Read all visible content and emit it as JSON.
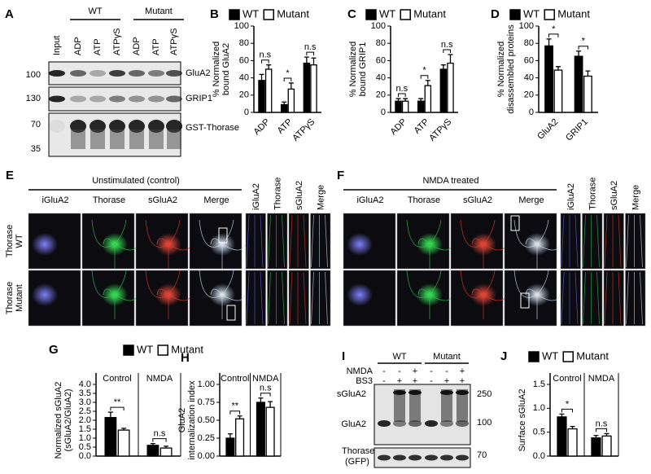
{
  "panel_a": {
    "letter": "A",
    "groups": [
      "WT",
      "Mutant"
    ],
    "lanes": [
      "Input",
      "ADP",
      "ATP",
      "ATPγS",
      "ADP",
      "ATP",
      "ATPγS"
    ],
    "markers": [
      "100",
      "130",
      "70",
      "35"
    ],
    "proteins": [
      "GluA2",
      "GRIP1",
      "GST-Thorase"
    ]
  },
  "panel_e": {
    "letter": "E",
    "title": "Unstimulated (control)",
    "columns": [
      "iGluA2",
      "Thorase",
      "sGluA2",
      "Merge",
      "iGluA2",
      "Thorase",
      "sGluA2",
      "Merge"
    ],
    "rows": [
      [
        "Thorase",
        "WT"
      ],
      [
        "Thorase",
        "Mutant"
      ]
    ]
  },
  "panel_f": {
    "letter": "F",
    "title": "NMDA treated",
    "columns": [
      "iGluA2",
      "Thorase",
      "sGluA2",
      "Merge",
      "iGluA2",
      "Thorase",
      "sGluA2",
      "Merge"
    ]
  },
  "panel_i": {
    "letter": "I",
    "groups": [
      "WT",
      "Mutant"
    ],
    "conditions": [
      {
        "name": "NMDA",
        "signs": [
          "-",
          "-",
          "+",
          "-",
          "-",
          "+"
        ]
      },
      {
        "name": "BS3",
        "signs": [
          "-",
          "+",
          "+",
          "-",
          "+",
          "+"
        ]
      }
    ],
    "bands": [
      "sGluA2",
      "GluA2"
    ],
    "markers": [
      "250",
      "100"
    ],
    "loading": [
      "Thorase",
      "(GFP)"
    ],
    "loading_marker": "70"
  },
  "chart_data": [
    {
      "type": "bar",
      "panel": "B",
      "ylabel": [
        "% Normalized",
        "bound GluA2"
      ],
      "categories": [
        "ADP",
        "ATP",
        "ATPγS"
      ],
      "category_label_position": "bottom",
      "series": [
        {
          "name": "WT",
          "color": "#000000",
          "values": [
            37,
            9,
            57
          ],
          "errors": [
            7,
            3,
            7
          ]
        },
        {
          "name": "Mutant",
          "color": "#ffffff",
          "values": [
            50,
            27,
            55
          ],
          "errors": [
            5,
            7,
            8
          ]
        }
      ],
      "annotations": [
        "n.s",
        "*",
        "n.s"
      ],
      "ylim": [
        0,
        100
      ],
      "yticks": [
        0,
        20,
        40,
        60,
        80,
        100
      ]
    },
    {
      "type": "bar",
      "panel": "C",
      "ylabel": [
        "% Normalized",
        "bound GRIP1"
      ],
      "categories": [
        "ADP",
        "ATP",
        "ATPγS"
      ],
      "category_label_position": "bottom",
      "series": [
        {
          "name": "WT",
          "color": "#000000",
          "values": [
            13,
            13,
            50
          ],
          "errors": [
            3,
            3,
            5
          ]
        },
        {
          "name": "Mutant",
          "color": "#ffffff",
          "values": [
            13,
            31,
            57
          ],
          "errors": [
            3,
            6,
            10
          ]
        }
      ],
      "annotations": [
        "n.s",
        "*",
        "n.s"
      ],
      "ylim": [
        0,
        100
      ],
      "yticks": [
        0,
        20,
        40,
        60,
        80,
        100
      ]
    },
    {
      "type": "bar",
      "panel": "D",
      "ylabel": [
        "% Normalized",
        "disassembled proteins"
      ],
      "categories": [
        "GluA2",
        "GRIP1"
      ],
      "category_label_position": "bottom",
      "series": [
        {
          "name": "WT",
          "color": "#000000",
          "values": [
            77,
            65
          ],
          "errors": [
            8,
            6
          ]
        },
        {
          "name": "Mutant",
          "color": "#ffffff",
          "values": [
            49,
            42
          ],
          "errors": [
            4,
            6
          ]
        }
      ],
      "annotations": [
        "*",
        "*"
      ],
      "ylim": [
        0,
        100
      ],
      "yticks": [
        0,
        20,
        40,
        60,
        80,
        100
      ]
    },
    {
      "type": "bar",
      "panel": "G",
      "ylabel": [
        "Normalized sGluA2",
        "(sGluA2/GluA2)"
      ],
      "categories": [
        "Control",
        "NMDA"
      ],
      "category_label_position": "top",
      "series": [
        {
          "name": "WT",
          "color": "#000000",
          "values": [
            2.15,
            0.6
          ],
          "errors": [
            0.3,
            0.1
          ]
        },
        {
          "name": "Mutant",
          "color": "#ffffff",
          "values": [
            1.45,
            0.45
          ],
          "errors": [
            0.1,
            0.1
          ]
        }
      ],
      "annotations": [
        "**",
        "n.s"
      ],
      "ylim": [
        0,
        4
      ],
      "yticks": [
        {
          "value": 0,
          "label": "0.0"
        },
        {
          "value": 0.5,
          "label": "0.5"
        },
        {
          "value": 1,
          "label": "1.0"
        },
        {
          "value": 1.5,
          "label": "1.5"
        },
        {
          "value": 2,
          "label": "2.0"
        },
        {
          "value": 2.5,
          "label": "2.5"
        },
        {
          "value": 3,
          "label": "3.0"
        },
        {
          "value": 3.5,
          "label": "3.5"
        },
        {
          "value": 4,
          "label": "4.0"
        }
      ]
    },
    {
      "type": "bar",
      "panel": "H",
      "ylabel": [
        "GluA2",
        "internalization index"
      ],
      "categories": [
        "Control",
        "NMDA"
      ],
      "category_label_position": "top",
      "series": [
        {
          "color": "#000000",
          "values": [
            0.25,
            0.75
          ],
          "errors": [
            0.06,
            0.06
          ]
        },
        {
          "color": "#ffffff",
          "values": [
            0.52,
            0.68
          ],
          "errors": [
            0.04,
            0.08
          ]
        }
      ],
      "annotations": [
        "**",
        "n.s"
      ],
      "ylim": [
        0,
        1
      ],
      "yticks": [
        {
          "value": 0,
          "label": "0.00"
        },
        {
          "value": 0.25,
          "label": "0.25"
        },
        {
          "value": 0.5,
          "label": "0.50"
        },
        {
          "value": 0.75,
          "label": "0.75"
        },
        {
          "value": 1,
          "label": "1.00"
        }
      ]
    },
    {
      "type": "bar",
      "panel": "J",
      "ylabel": [
        "Surface sGluA2"
      ],
      "categories": [
        "Control",
        "NMDA"
      ],
      "category_label_position": "top",
      "series": [
        {
          "name": "WT",
          "color": "#000000",
          "values": [
            0.82,
            0.38
          ],
          "errors": [
            0.06,
            0.05
          ]
        },
        {
          "name": "Mutant",
          "color": "#ffffff",
          "values": [
            0.57,
            0.42
          ],
          "errors": [
            0.05,
            0.05
          ]
        }
      ],
      "annotations": [
        "*",
        "n.s"
      ],
      "ylim": [
        0,
        1.5
      ],
      "yticks": [
        {
          "value": 0,
          "label": "0.0"
        },
        {
          "value": 0.5,
          "label": "0.5"
        },
        {
          "value": 1,
          "label": "1.0"
        },
        {
          "value": 1.5,
          "label": "1.5"
        }
      ]
    }
  ]
}
